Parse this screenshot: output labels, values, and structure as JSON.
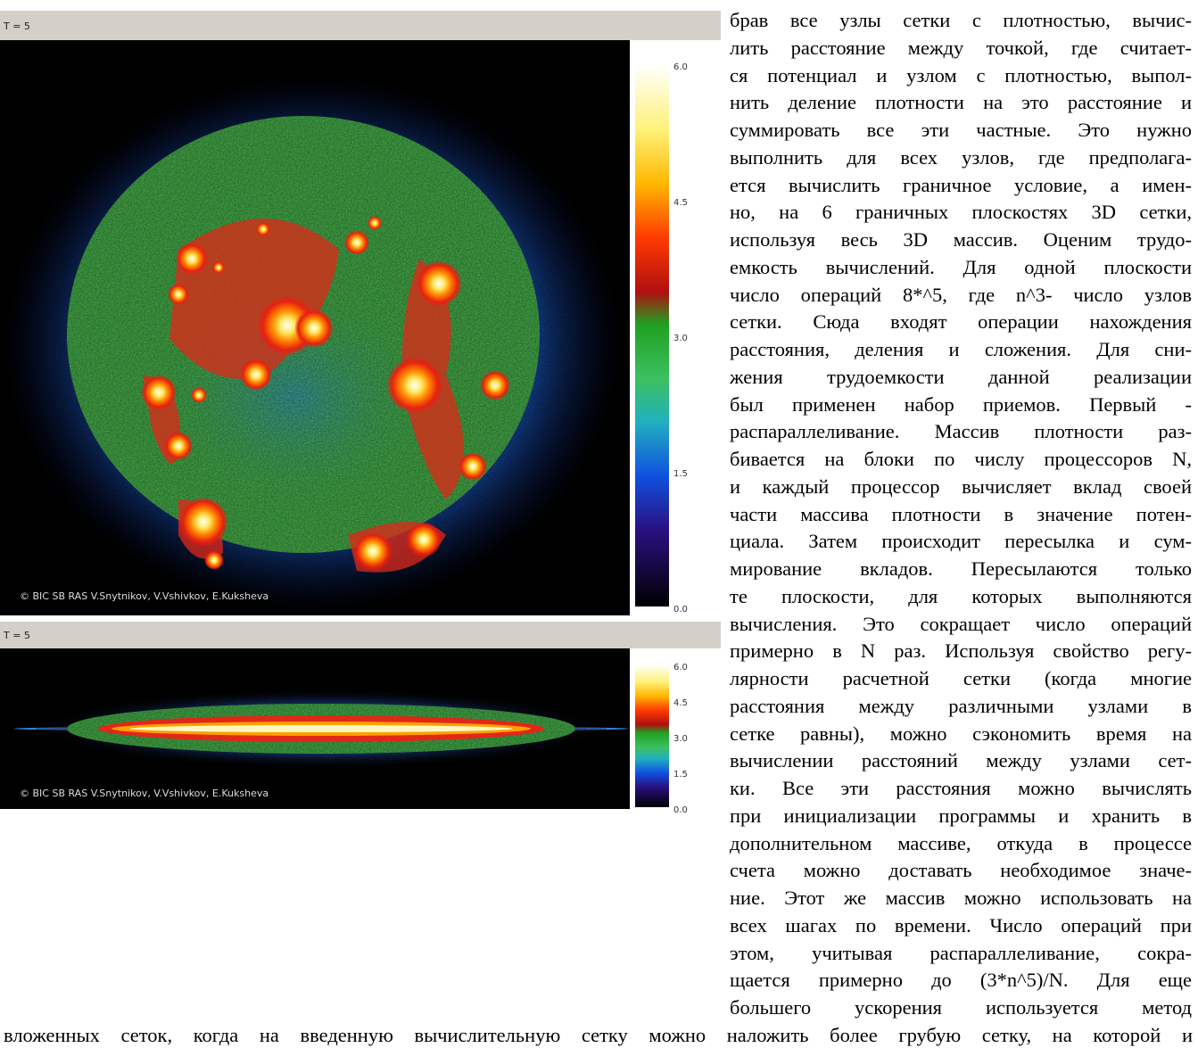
{
  "figures": [
    {
      "title": "T = 5",
      "colorbar_labels": [
        "6.0",
        "4.5",
        "3.0",
        "1.5",
        "0.0"
      ],
      "credit": "© BIC SB RAS   V.Snytnikov, V.Vshivkov, E.Kuksheva"
    },
    {
      "title": "T = 5",
      "colorbar_labels": [
        "6.0",
        "4.5",
        "3.0",
        "1.5",
        "0.0"
      ],
      "credit": "© BIC SB RAS   V.Snytnikov, V.Vshivkov, E.Kuksheva"
    }
  ],
  "column_lines": [
    "брав все узлы сетки с плотностью, вычис-",
    "лить расстояние между точкой, где считает-",
    "ся потенциал и узлом с плотностью, выпол-",
    "нить деление плотности на это расстояние и",
    "суммировать все эти частные. Это нужно",
    "выполнить для всех узлов, где предполага-",
    "ется вычислить граничное условие, а имен-",
    "но, на 6 граничных плоскостях 3D сетки,",
    "используя весь 3D массив. Оценим трудо-",
    "емкость вычислений. Для одной плоскости",
    "число операций 8*^5, где n^3- число узлов",
    "сетки. Сюда входят операции нахождения",
    "расстояния, деления и сложения. Для сни-",
    "жения трудоемкости данной реализации",
    "был применен набор приемов. Первый -",
    "распараллеливание. Массив плотности раз-",
    "бивается на блоки по числу процессоров N,",
    "и каждый процессор вычисляет вклад своей",
    "части массива плотности в значение потен-",
    "циала. Затем происходит пересылка и сум-",
    "мирование вкладов. Пересылаются только",
    "те плоскости, для которых выполняются",
    "вычисления. Это сокращает число операций",
    "примерно в N раз. Используя свойство регу-",
    "лярности расчетной сетки (когда многие",
    "расстояния между различными узлами в",
    "сетке равны), можно сэкономить время на",
    "вычислении расстояний между узлами сет-",
    "ки. Все эти расстояния можно вычислять",
    "при инициализации программы и хранить в",
    "дополнительном массиве, откуда в процессе",
    "счета можно доставать необходимое значе-",
    "ние. Этот же массив можно использовать на",
    "всех шагах по времени. Число операций при",
    "этом, учитывая распараллеливание, сокра-",
    "щается примерно до (3*n^5)/N. Для еще",
    "большего ускорения используется метод"
  ],
  "full_line": "вложенных сеток, когда на введенную вычислительную сетку можно наложить более грубую сетку, на которой и"
}
